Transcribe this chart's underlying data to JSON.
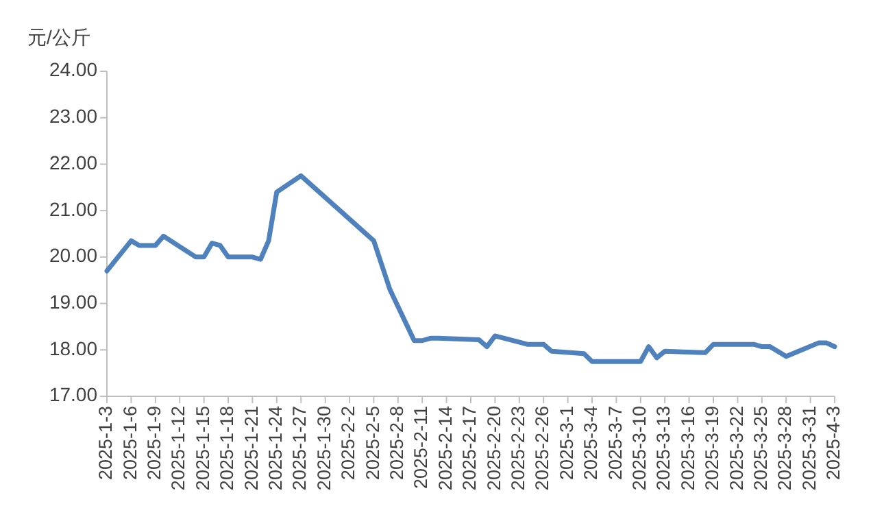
{
  "chart_data": {
    "type": "line",
    "ylabel": "元/公斤",
    "x": [
      "2025-01-03",
      "2025-01-06",
      "2025-01-07",
      "2025-01-09",
      "2025-01-10",
      "2025-01-14",
      "2025-01-15",
      "2025-01-16",
      "2025-01-17",
      "2025-01-18",
      "2025-01-21",
      "2025-01-22",
      "2025-01-23",
      "2025-01-24",
      "2025-01-27",
      "2025-02-05",
      "2025-02-07",
      "2025-02-10",
      "2025-02-11",
      "2025-02-12",
      "2025-02-13",
      "2025-02-18",
      "2025-02-19",
      "2025-02-20",
      "2025-02-24",
      "2025-02-26",
      "2025-02-27",
      "2025-03-03",
      "2025-03-04",
      "2025-03-10",
      "2025-03-11",
      "2025-03-12",
      "2025-03-13",
      "2025-03-18",
      "2025-03-19",
      "2025-03-24",
      "2025-03-25",
      "2025-03-26",
      "2025-03-28",
      "2025-04-01",
      "2025-04-02",
      "2025-04-03"
    ],
    "series": [
      {
        "color": "#4f81bd",
        "values": [
          19.7,
          20.35,
          20.25,
          20.25,
          20.45,
          20.0,
          20.0,
          20.3,
          20.25,
          20.0,
          20.0,
          19.95,
          20.35,
          21.4,
          21.75,
          20.35,
          19.3,
          18.2,
          18.2,
          18.25,
          18.25,
          18.22,
          18.07,
          18.3,
          18.12,
          18.12,
          17.97,
          17.92,
          17.75,
          17.75,
          18.07,
          17.83,
          17.97,
          17.94,
          18.12,
          18.12,
          18.07,
          18.07,
          17.86,
          18.15,
          18.15,
          18.07
        ]
      }
    ],
    "xlim": [
      "2025-01-03",
      "2025-04-03"
    ],
    "xticks": [
      {
        "value": "2025-01-03",
        "label": "2025-1-3"
      },
      {
        "value": "2025-01-06",
        "label": "2025-1-6"
      },
      {
        "value": "2025-01-09",
        "label": "2025-1-9"
      },
      {
        "value": "2025-01-12",
        "label": "2025-1-12"
      },
      {
        "value": "2025-01-15",
        "label": "2025-1-15"
      },
      {
        "value": "2025-01-18",
        "label": "2025-1-18"
      },
      {
        "value": "2025-01-21",
        "label": "2025-1-21"
      },
      {
        "value": "2025-01-24",
        "label": "2025-1-24"
      },
      {
        "value": "2025-01-27",
        "label": "2025-1-27"
      },
      {
        "value": "2025-01-30",
        "label": "2025-1-30"
      },
      {
        "value": "2025-02-02",
        "label": "2025-2-2"
      },
      {
        "value": "2025-02-05",
        "label": "2025-2-5"
      },
      {
        "value": "2025-02-08",
        "label": "2025-2-8"
      },
      {
        "value": "2025-02-11",
        "label": "2025-2-11"
      },
      {
        "value": "2025-02-14",
        "label": "2025-2-14"
      },
      {
        "value": "2025-02-17",
        "label": "2025-2-17"
      },
      {
        "value": "2025-02-20",
        "label": "2025-2-20"
      },
      {
        "value": "2025-02-23",
        "label": "2025-2-23"
      },
      {
        "value": "2025-02-26",
        "label": "2025-2-26"
      },
      {
        "value": "2025-03-01",
        "label": "2025-3-1"
      },
      {
        "value": "2025-03-04",
        "label": "2025-3-4"
      },
      {
        "value": "2025-03-07",
        "label": "2025-3-7"
      },
      {
        "value": "2025-03-10",
        "label": "2025-3-10"
      },
      {
        "value": "2025-03-13",
        "label": "2025-3-13"
      },
      {
        "value": "2025-03-16",
        "label": "2025-3-16"
      },
      {
        "value": "2025-03-19",
        "label": "2025-3-19"
      },
      {
        "value": "2025-03-22",
        "label": "2025-3-22"
      },
      {
        "value": "2025-03-25",
        "label": "2025-3-25"
      },
      {
        "value": "2025-03-28",
        "label": "2025-3-28"
      },
      {
        "value": "2025-03-31",
        "label": "2025-3-31"
      },
      {
        "value": "2025-04-03",
        "label": "2025-4-3"
      }
    ],
    "ylim": [
      17,
      24
    ],
    "yticks": [
      {
        "value": 17,
        "label": "17.00"
      },
      {
        "value": 18,
        "label": "18.00"
      },
      {
        "value": 19,
        "label": "19.00"
      },
      {
        "value": 20,
        "label": "20.00"
      },
      {
        "value": 21,
        "label": "21.00"
      },
      {
        "value": 22,
        "label": "22.00"
      },
      {
        "value": 23,
        "label": "23.00"
      },
      {
        "value": 24,
        "label": "24.00"
      }
    ]
  }
}
